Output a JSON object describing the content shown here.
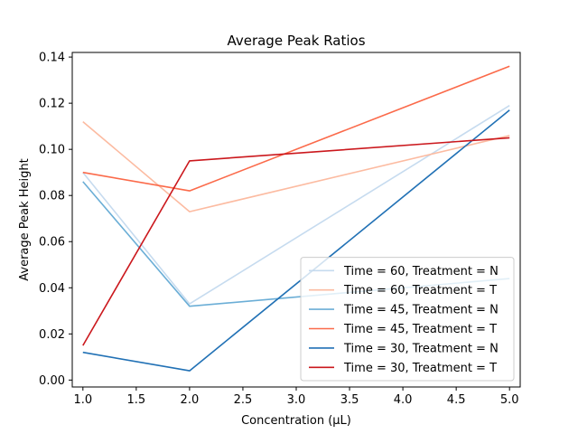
{
  "chart_data": {
    "type": "line",
    "title": "Average Peak Ratios",
    "xlabel": "Concentration (μL)",
    "ylabel": "Average Peak Height",
    "xlim": [
      0.9,
      5.1
    ],
    "ylim": [
      -0.003,
      0.142
    ],
    "x_ticks": [
      1.0,
      1.5,
      2.0,
      2.5,
      3.0,
      3.5,
      4.0,
      4.5,
      5.0
    ],
    "x_tick_labels": [
      "1.0",
      "1.5",
      "2.0",
      "2.5",
      "3.0",
      "3.5",
      "4.0",
      "4.5",
      "5.0"
    ],
    "y_ticks": [
      0.0,
      0.02,
      0.04,
      0.06,
      0.08,
      0.1,
      0.12,
      0.14
    ],
    "y_tick_labels": [
      "0.00",
      "0.02",
      "0.04",
      "0.06",
      "0.08",
      "0.10",
      "0.12",
      "0.14"
    ],
    "grid": false,
    "legend_position": "lower-right",
    "x": [
      1.0,
      2.0,
      5.0
    ],
    "series": [
      {
        "name": "Time = 60, Treatment = N",
        "color": "#c6dbef",
        "values": [
          0.09,
          0.033,
          0.119
        ]
      },
      {
        "name": "Time = 60, Treatment = T",
        "color": "#fcbba1",
        "values": [
          0.112,
          0.073,
          0.106
        ]
      },
      {
        "name": "Time = 45, Treatment = N",
        "color": "#6baed6",
        "values": [
          0.086,
          0.032,
          0.044
        ]
      },
      {
        "name": "Time = 45, Treatment = T",
        "color": "#fb6a4a",
        "values": [
          0.09,
          0.082,
          0.136
        ]
      },
      {
        "name": "Time = 30, Treatment = N",
        "color": "#2171b5",
        "values": [
          0.012,
          0.004,
          0.117
        ]
      },
      {
        "name": "Time = 30, Treatment = T",
        "color": "#cb181d",
        "values": [
          0.015,
          0.095,
          0.105
        ]
      }
    ]
  }
}
